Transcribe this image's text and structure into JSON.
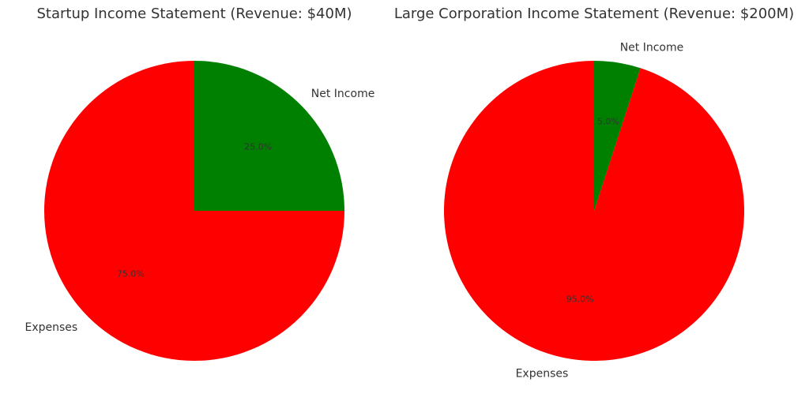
{
  "chart_data": [
    {
      "type": "pie",
      "title": "Startup Income Statement (Revenue: $40M)",
      "categories": [
        "Net Income",
        "Expenses"
      ],
      "values": [
        25.0,
        75.0
      ],
      "percent_labels": [
        "25.0%",
        "75.0%"
      ],
      "colors": [
        "#008000",
        "#ff0000"
      ]
    },
    {
      "type": "pie",
      "title": "Large Corporation Income Statement (Revenue: $200M)",
      "categories": [
        "Net Income",
        "Expenses"
      ],
      "values": [
        5.0,
        95.0
      ],
      "percent_labels": [
        "5.0%",
        "95.0%"
      ],
      "colors": [
        "#008000",
        "#ff0000"
      ]
    }
  ]
}
